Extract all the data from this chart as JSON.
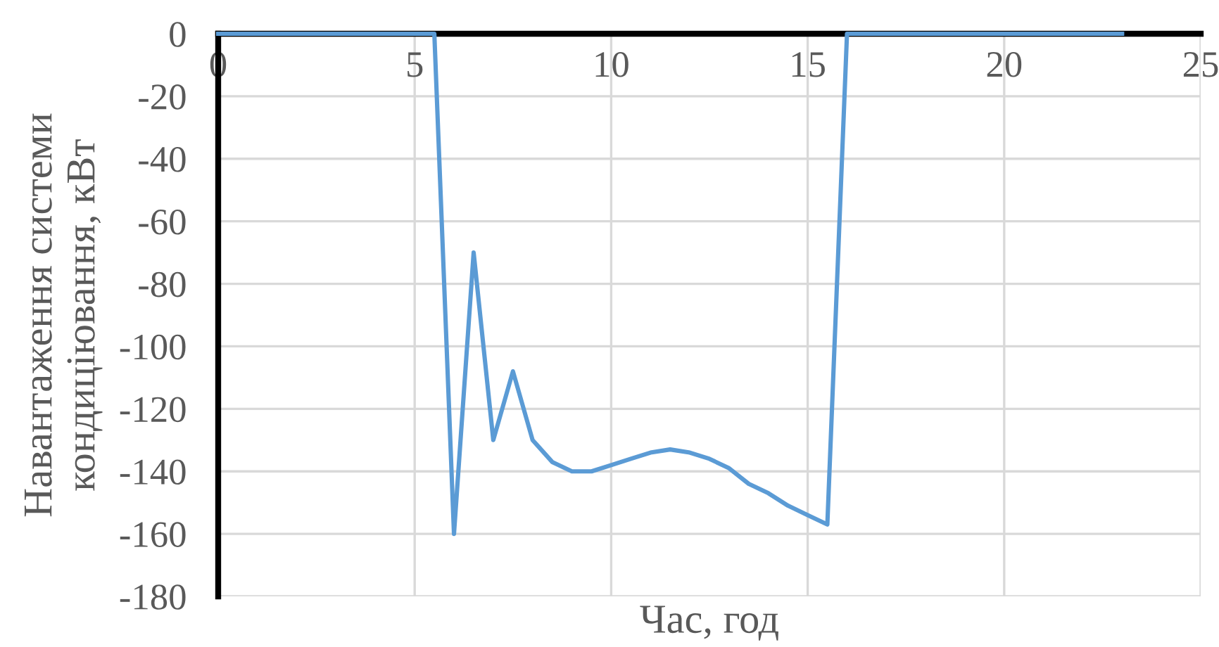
{
  "chart_data": {
    "type": "line",
    "xlabel": "Час, год",
    "ylabel": "Навантаження системи\nкондиціювання, кВт",
    "x": [
      0,
      5.5,
      6,
      6.5,
      7,
      7.5,
      8,
      8.5,
      9,
      9.5,
      10,
      10.5,
      11,
      11.5,
      12,
      12.5,
      13,
      13.5,
      14,
      14.5,
      15,
      15.5,
      16,
      23
    ],
    "series": [
      {
        "color": "#5b9bd5",
        "values": [
          0,
          0,
          -160,
          -70,
          -130,
          -108,
          -130,
          -137,
          -140,
          -140,
          -138,
          -136,
          -134,
          -133,
          -134,
          -136,
          -139,
          -144,
          -147,
          -151,
          -154,
          -157,
          0,
          0
        ]
      }
    ],
    "xlim": [
      0,
      25
    ],
    "xticks": [
      0,
      5,
      10,
      15,
      20,
      25
    ],
    "ylim": [
      -180,
      0
    ],
    "yticks": [
      -180,
      -160,
      -140,
      -120,
      -100,
      -80,
      -60,
      -40,
      -20,
      0
    ],
    "grid": true,
    "marker": "none",
    "line_style": "solid",
    "legend": false
  }
}
